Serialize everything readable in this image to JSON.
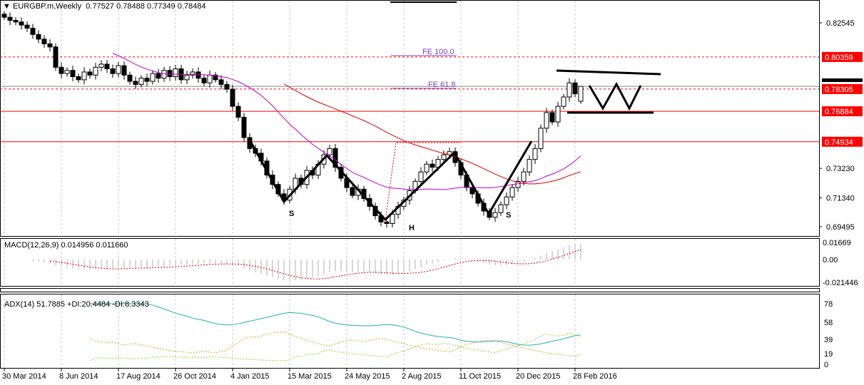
{
  "header": {
    "symbol": "EURGBP.m,Weekly",
    "ohlc": "0.77527 0.78488 0.77349 0.78484"
  },
  "macd_label": "MACD(12,26,9) 0.014956 0.011660",
  "adx_label": "ADX(14) 51.7885 +DI:20.4484 -DI:8.3343",
  "annotations": {
    "fe100": "FE 100.0",
    "fe618": "FE 61.8",
    "s1": "S",
    "h": "H",
    "s2": "S"
  },
  "price_axis": [
    "0.82545",
    "0.73230",
    "0.71340",
    "0.69495"
  ],
  "price_tags": [
    {
      "label": "0.80359",
      "value": 0.80359,
      "color": "#ff0000",
      "style": "dotted"
    },
    {
      "label": "0.78305",
      "value": 0.78305,
      "color": "#ff0000",
      "style": "dotted"
    },
    {
      "label": "0.76884",
      "value": 0.76884,
      "color": "#ff0000",
      "style": "solid"
    },
    {
      "label": "0.74934",
      "value": 0.74934,
      "color": "#ff0000",
      "style": "solid"
    }
  ],
  "current_price": "0.78484",
  "macd_axis": [
    "0.01669",
    "0.00",
    "-0.021446"
  ],
  "adx_axis": [
    "78",
    "58",
    "39",
    "19",
    "0"
  ],
  "dates": [
    "30 Mar 2014",
    "8 Jun 2014",
    "17 Aug 2014",
    "26 Oct 2014",
    "4 Jan 2015",
    "15 Mar 2015",
    "24 May 2015",
    "2 Aug 2015",
    "11 Oct 2015",
    "20 Dec 2015",
    "28 Feb 2016"
  ],
  "chart_data": {
    "type": "candlestick",
    "title": "EURGBP.m,Weekly",
    "ylim": [
      0.69495,
      0.82545
    ],
    "closes": [
      0.829,
      0.827,
      0.826,
      0.824,
      0.822,
      0.818,
      0.815,
      0.812,
      0.81,
      0.797,
      0.793,
      0.795,
      0.791,
      0.789,
      0.794,
      0.792,
      0.797,
      0.799,
      0.796,
      0.793,
      0.798,
      0.792,
      0.788,
      0.786,
      0.79,
      0.788,
      0.793,
      0.79,
      0.795,
      0.791,
      0.796,
      0.789,
      0.792,
      0.794,
      0.79,
      0.787,
      0.792,
      0.789,
      0.786,
      0.783,
      0.772,
      0.765,
      0.752,
      0.745,
      0.742,
      0.737,
      0.728,
      0.722,
      0.716,
      0.712,
      0.719,
      0.726,
      0.722,
      0.731,
      0.728,
      0.735,
      0.741,
      0.745,
      0.733,
      0.726,
      0.72,
      0.715,
      0.719,
      0.713,
      0.708,
      0.702,
      0.698,
      0.697,
      0.703,
      0.708,
      0.712,
      0.718,
      0.724,
      0.73,
      0.735,
      0.733,
      0.738,
      0.741,
      0.743,
      0.736,
      0.728,
      0.72,
      0.716,
      0.71,
      0.705,
      0.701,
      0.704,
      0.709,
      0.714,
      0.72,
      0.724,
      0.73,
      0.738,
      0.745,
      0.758,
      0.768,
      0.762,
      0.772,
      0.778,
      0.787,
      0.78,
      0.78484
    ],
    "moving_averages": [
      {
        "period": 20,
        "color": "#c000c0"
      },
      {
        "period": 50,
        "color": "#e00000"
      }
    ],
    "macd": {
      "fast": 12,
      "slow": 26,
      "signal": 9,
      "ylim": [
        -0.021446,
        0.01669
      ]
    },
    "adx": {
      "period": 14,
      "ylim": [
        0,
        78
      ]
    }
  }
}
